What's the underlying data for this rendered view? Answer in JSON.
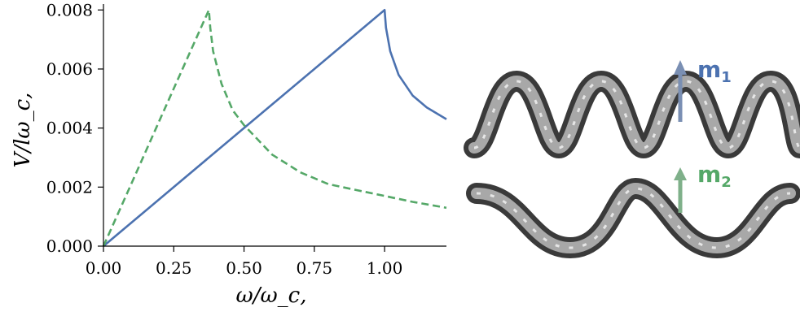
{
  "chart_data": {
    "type": "line",
    "xlabel": "ω/ω_c,",
    "ylabel": "V/lω_c,",
    "xlim": [
      0.0,
      1.22
    ],
    "ylim": [
      0.0,
      0.0082
    ],
    "x_ticks": [
      "0.00",
      "0.25",
      "0.50",
      "0.75",
      "1.00"
    ],
    "y_ticks": [
      "0.000",
      "0.002",
      "0.004",
      "0.006",
      "0.008"
    ],
    "grid": false,
    "series": [
      {
        "color": "#4c72b0",
        "style": "solid",
        "x": [
          0.0,
          0.25,
          0.5,
          0.75,
          1.0,
          1.005,
          1.02,
          1.05,
          1.1,
          1.15,
          1.22
        ],
        "y": [
          0.0,
          0.002,
          0.004,
          0.006,
          0.008,
          0.0074,
          0.0066,
          0.0058,
          0.0051,
          0.0047,
          0.0043
        ]
      },
      {
        "color": "#55a868",
        "style": "dashed",
        "x": [
          0.0,
          0.1,
          0.2,
          0.3,
          0.375,
          0.38,
          0.39,
          0.42,
          0.46,
          0.5,
          0.6,
          0.7,
          0.8,
          0.9,
          1.0,
          1.1,
          1.22
        ],
        "y": [
          0.0,
          0.00213,
          0.00427,
          0.0064,
          0.008,
          0.0074,
          0.0066,
          0.0055,
          0.0046,
          0.0041,
          0.0031,
          0.0025,
          0.0021,
          0.0019,
          0.0017,
          0.0015,
          0.0013
        ]
      }
    ]
  },
  "legend_side": {
    "m1": {
      "base": "m",
      "sub": "1",
      "color": "#4c72b0"
    },
    "m2": {
      "base": "m",
      "sub": "2",
      "color": "#55a868"
    }
  }
}
